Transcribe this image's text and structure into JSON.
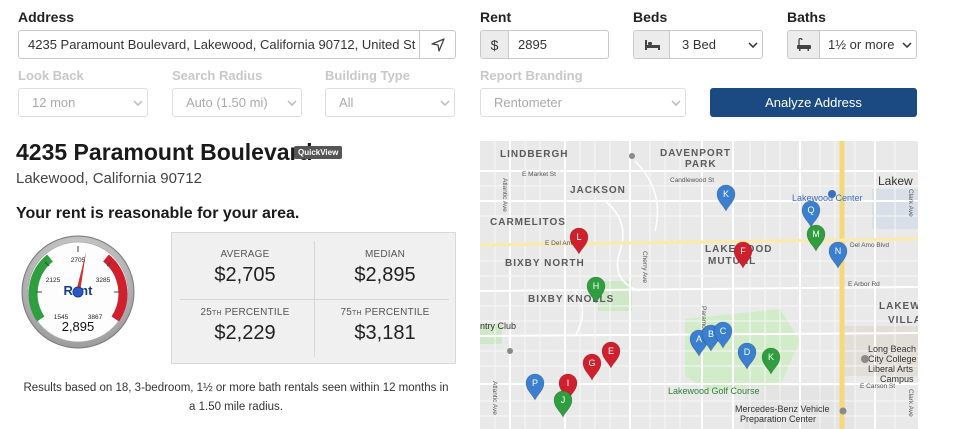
{
  "form": {
    "address_label": "Address",
    "address_value": "4235 Paramount Boulevard, Lakewood, California 90712, United St",
    "rent_label": "Rent",
    "rent_currency": "$",
    "rent_value": "2895",
    "beds_label": "Beds",
    "beds_value": "3 Bed",
    "baths_label": "Baths",
    "baths_value": "1½ or more",
    "lookback_label": "Look Back",
    "lookback_value": "12 mon",
    "radius_label": "Search Radius",
    "radius_value": "Auto (1.50 mi)",
    "building_label": "Building Type",
    "building_value": "All",
    "branding_label": "Report Branding",
    "branding_value": "Rentometer",
    "analyze_button": "Analyze Address"
  },
  "result": {
    "title": "4235 Paramount Boulevard",
    "quickview": "QuickView",
    "subtitle": "Lakewood, California 90712",
    "verdict": "Your rent is reasonable for your area."
  },
  "gauge": {
    "tick_low": "1545",
    "tick_2125": "2125",
    "tick_2705": "2705",
    "tick_3285": "3285",
    "tick_high": "3867",
    "center_label": "Rent",
    "value": "2,895",
    "colors": {
      "green": "#2e9e3e",
      "red": "#d0202e",
      "needle": "#d0302a"
    }
  },
  "stats": {
    "average_label": "AVERAGE",
    "average_value": "$2,705",
    "median_label": "MEDIAN",
    "median_value": "$2,895",
    "p25_num": "25",
    "p25_sup": "TH",
    "p25_label": " PERCENTILE",
    "p25_value": "$2,229",
    "p75_num": "75",
    "p75_sup": "TH",
    "p75_label": " PERCENTILE",
    "p75_value": "$3,181"
  },
  "note": "Results based on 18, 3-bedroom, 1½ or more bath rentals seen within 12 months in a 1.50 mile radius.",
  "map": {
    "labels": {
      "lindbergh": "LINDBERGH",
      "davenport": "DAVENPORT",
      "park": "PARK",
      "jackson": "JACKSON",
      "carmelitos": "CARMELITOS",
      "bixby_north": "BIXBY NORTH",
      "bixby_knolls": "BIXBY KNOLLS",
      "lakewood_mutual_1": "LAKEWOOD",
      "lakewood_mutual_2": "MUTUAL",
      "lakewood": "Lakew",
      "lakewood_villa_1": "LAKEW",
      "lakewood_villa_2": "VILLA",
      "lakewood_center": "Lakewood Center",
      "lakewood_golf": "Lakewood Golf Course",
      "lb_college_1": "Long Beach",
      "lb_college_2": "City College",
      "lb_college_3": "Liberal Arts",
      "lb_college_4": "Campus",
      "mercedes_1": "Mercedes-Benz Vehicle",
      "mercedes_2": "Preparation Center",
      "country_club": "ntry Club",
      "market_st": "E Market St",
      "candlewood": "Candlewood St",
      "del_amo_w": "E Del Amo",
      "del_amo_e": "Del Amo Blvd",
      "arbor": "E Arbor Rd",
      "carson": "E Carson St",
      "atlantic": "Atlantic Ave",
      "cherry": "Cherry Ave",
      "paramount": "Paramount",
      "clark": "Clark Ave",
      "atlantic_s": "Atlantic Ave",
      "clark_s": "Clark Ave"
    },
    "markers": [
      {
        "letter": "K",
        "color": "#3a7fd0"
      },
      {
        "letter": "Q",
        "color": "#3a7fd0"
      },
      {
        "letter": "M",
        "color": "#2e9e3e"
      },
      {
        "letter": "N",
        "color": "#3a7fd0"
      },
      {
        "letter": "L",
        "color": "#d0202e"
      },
      {
        "letter": "F",
        "color": "#d0202e"
      },
      {
        "letter": "H",
        "color": "#2e9e3e"
      },
      {
        "letter": "A",
        "color": "#3a7fd0"
      },
      {
        "letter": "B",
        "color": "#3a7fd0"
      },
      {
        "letter": "C",
        "color": "#3a7fd0"
      },
      {
        "letter": "D",
        "color": "#3a7fd0"
      },
      {
        "letter": "K",
        "color": "#2e9e3e"
      },
      {
        "letter": "E",
        "color": "#d0202e"
      },
      {
        "letter": "G",
        "color": "#d0202e"
      },
      {
        "letter": "P",
        "color": "#3a7fd0"
      },
      {
        "letter": "I",
        "color": "#d0202e"
      },
      {
        "letter": "J",
        "color": "#2e9e3e"
      }
    ]
  }
}
